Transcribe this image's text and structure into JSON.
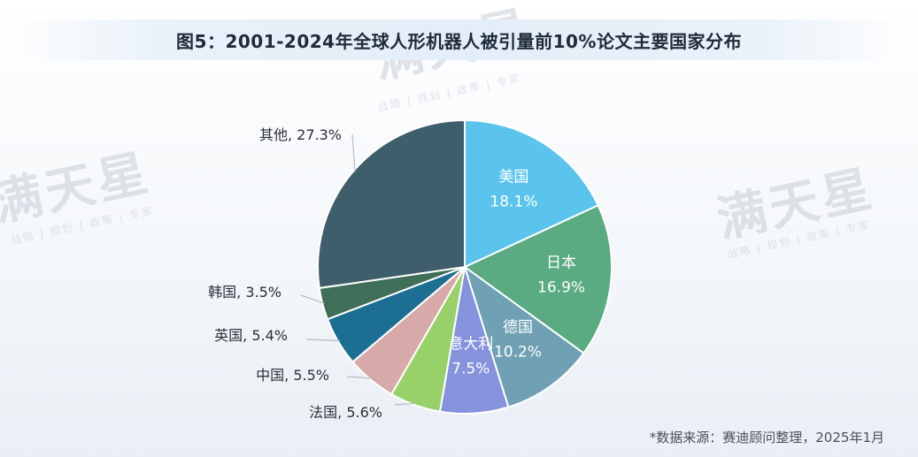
{
  "title": "图5：2001-2024年全球人形机器人被引量前10%论文主要国家分布",
  "source": "*数据来源：赛迪顾问整理，2025年1月",
  "watermark": {
    "brand": "满天星",
    "tagline": "战略 | 规划 | 政策 | 专家"
  },
  "chart_data": {
    "type": "pie",
    "slices": [
      {
        "label": "美国",
        "value_label": "18.1%",
        "value": 18.1,
        "color": "#5bc4ec",
        "label_inside": true
      },
      {
        "label": "日本",
        "value_label": "16.9%",
        "value": 16.9,
        "color": "#5aab82",
        "label_inside": true
      },
      {
        "label": "德国",
        "value_label": "10.2%",
        "value": 10.2,
        "color": "#6fa0b4",
        "label_inside": true
      },
      {
        "label": "意大利",
        "value_label": "7.5%",
        "value": 7.5,
        "color": "#8592dc",
        "label_inside": true
      },
      {
        "label": "法国",
        "value_label": "5.6%",
        "value": 5.6,
        "color": "#98d16a",
        "label_inside": false
      },
      {
        "label": "中国",
        "value_label": "5.5%",
        "value": 5.5,
        "color": "#d7a9a8",
        "label_inside": false
      },
      {
        "label": "英国",
        "value_label": "5.4%",
        "value": 5.4,
        "color": "#1c6f92",
        "label_inside": false
      },
      {
        "label": "韩国",
        "value_label": "3.5%",
        "value": 3.5,
        "color": "#3f6f58",
        "label_inside": false
      },
      {
        "label": "其他",
        "value_label": "27.3%",
        "value": 27.3,
        "color": "#3f5e6b",
        "label_inside": false
      }
    ]
  }
}
